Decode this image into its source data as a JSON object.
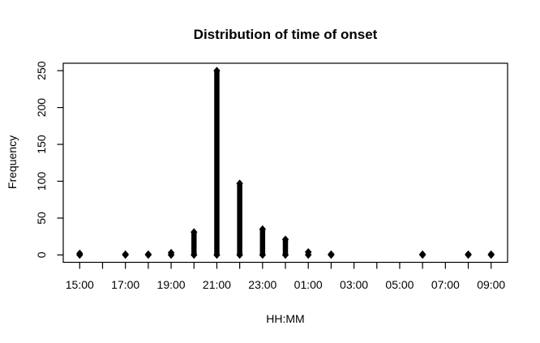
{
  "figure": {
    "background": "#ffffff",
    "foreground": "#000000"
  },
  "chart_data": {
    "type": "bar",
    "subtype": "vertical-spike-plot-with-diamond-markers",
    "title": "Distribution of time of onset",
    "xlabel": "HH:MM",
    "ylabel": "Frequency",
    "categories": [
      "15:00",
      "16:00",
      "17:00",
      "18:00",
      "19:00",
      "20:00",
      "21:00",
      "22:00",
      "23:00",
      "00:00",
      "01:00",
      "02:00",
      "03:00",
      "04:00",
      "05:00",
      "06:00",
      "07:00",
      "08:00",
      "09:00"
    ],
    "values": [
      2,
      0,
      1,
      1,
      3,
      31,
      250,
      97,
      35,
      21,
      4,
      1,
      0,
      0,
      0,
      1,
      0,
      1,
      1
    ],
    "x_tick_labels": [
      "15:00",
      "17:00",
      "19:00",
      "21:00",
      "23:00",
      "01:00",
      "03:00",
      "05:00",
      "07:00",
      "09:00"
    ],
    "labeled_tick_indices": [
      0,
      2,
      4,
      6,
      8,
      10,
      12,
      14,
      16,
      18
    ],
    "y_ticks": [
      0,
      50,
      100,
      150,
      200,
      250
    ],
    "ylim": [
      0,
      250
    ],
    "grid": "off",
    "legend": "none",
    "marker": "diamond",
    "series_color": "#000000"
  }
}
